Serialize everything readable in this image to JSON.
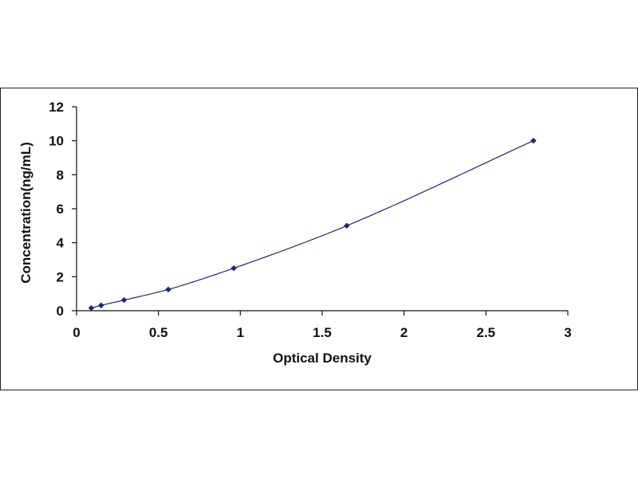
{
  "chart_data": {
    "type": "scatter",
    "title": "",
    "xlabel": "Optical Density",
    "ylabel": "Concentration(ng/mL)",
    "xlim": [
      0,
      3
    ],
    "ylim": [
      0,
      12
    ],
    "x_ticks": [
      "0",
      "0.5",
      "1",
      "1.5",
      "2",
      "2.5",
      "3"
    ],
    "y_ticks": [
      "0",
      "2",
      "4",
      "6",
      "8",
      "10",
      "12"
    ],
    "grid": false,
    "legend": "none",
    "colors": {
      "curve": "#1f2a6b",
      "marker": "#1f2a6b",
      "axis": "#111111"
    },
    "series": [
      {
        "points": [
          {
            "x": 0.09,
            "y": 0.156
          },
          {
            "x": 0.15,
            "y": 0.312
          },
          {
            "x": 0.29,
            "y": 0.625
          },
          {
            "x": 0.56,
            "y": 1.25
          },
          {
            "x": 0.96,
            "y": 2.5
          },
          {
            "x": 1.65,
            "y": 5
          },
          {
            "x": 2.79,
            "y": 10
          }
        ],
        "fit": "curve"
      }
    ]
  }
}
